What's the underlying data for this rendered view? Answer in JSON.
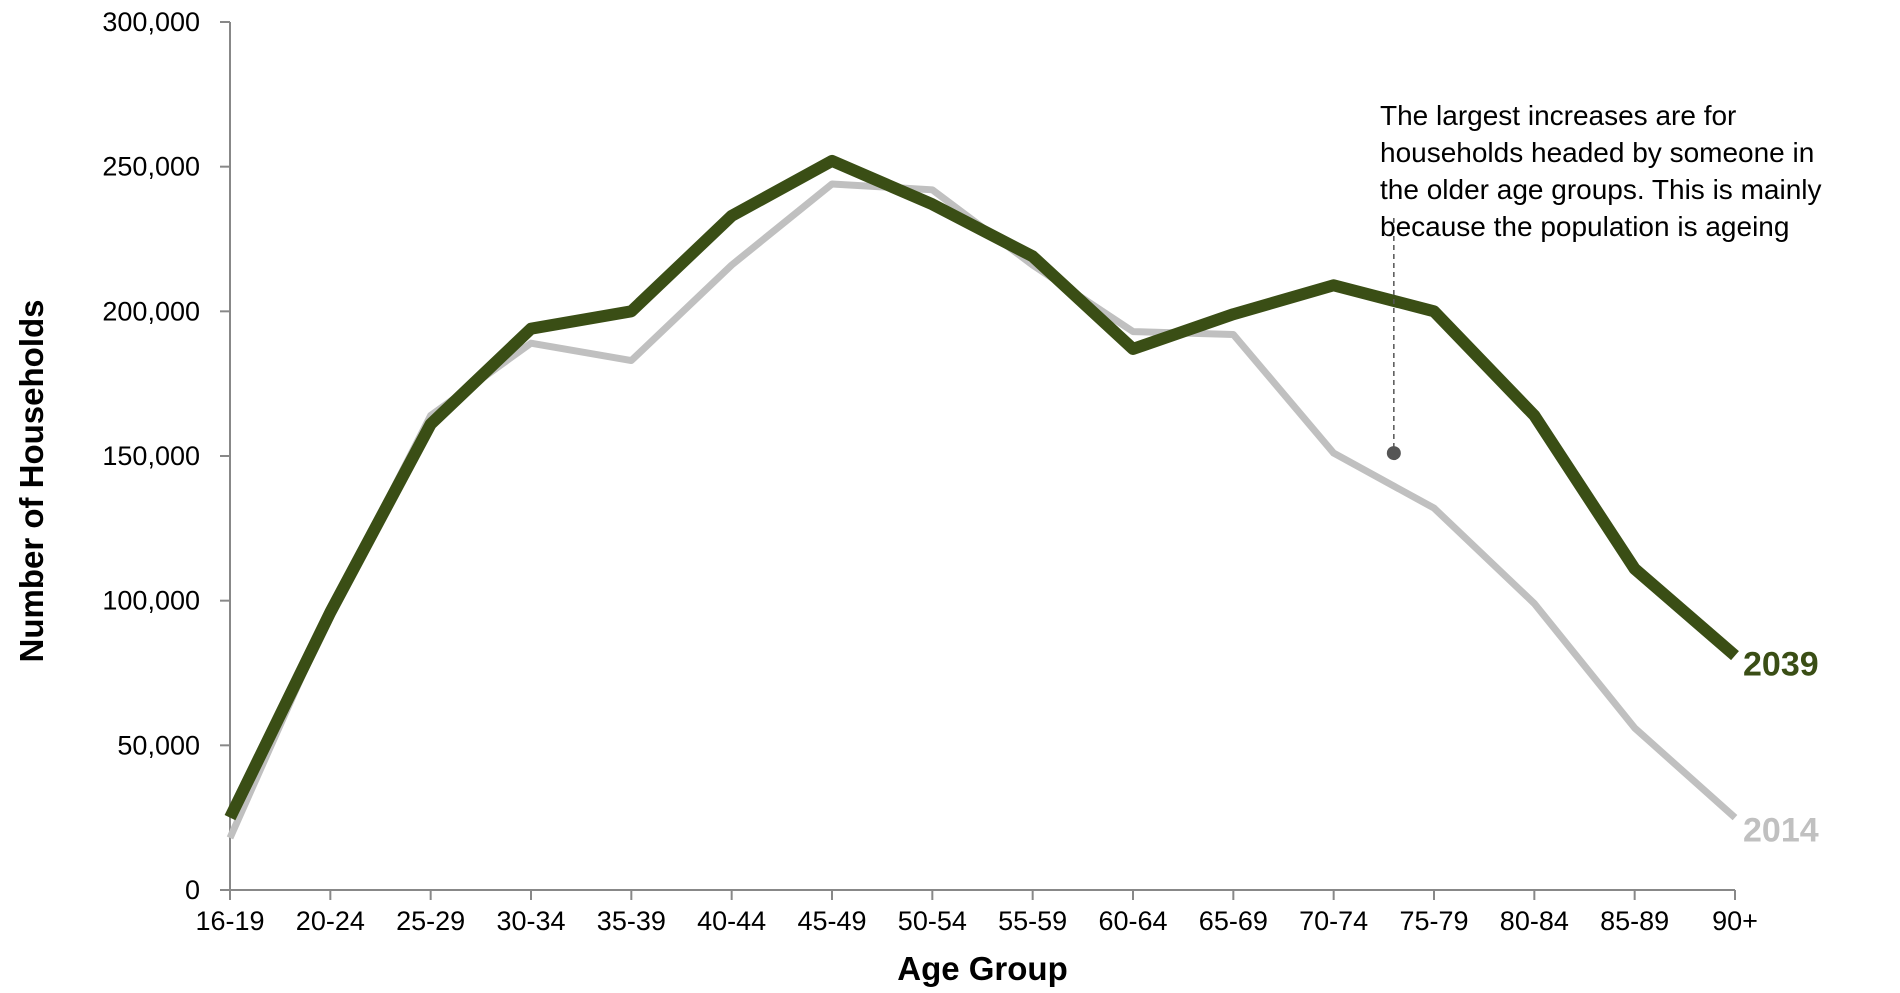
{
  "chart_data": {
    "type": "line",
    "xlabel": "Age Group",
    "ylabel": "Number of Households",
    "ylim": [
      0,
      300000
    ],
    "yticks": [
      0,
      50000,
      100000,
      150000,
      200000,
      250000,
      300000
    ],
    "ytick_labels": [
      "0",
      "50,000",
      "100,000",
      "150,000",
      "200,000",
      "250,000",
      "300,000"
    ],
    "categories": [
      "16-19",
      "20-24",
      "25-29",
      "30-34",
      "35-39",
      "40-44",
      "45-49",
      "50-54",
      "55-59",
      "60-64",
      "65-69",
      "70-74",
      "75-79",
      "80-84",
      "85-89",
      "90+"
    ],
    "series": [
      {
        "name": "2014",
        "color": "#c0c0c0",
        "values": [
          18000,
          96000,
          164000,
          189000,
          183000,
          216000,
          244000,
          242000,
          216000,
          193000,
          192000,
          151000,
          132000,
          99000,
          56000,
          25000
        ]
      },
      {
        "name": "2039",
        "color": "#3a4e15",
        "values": [
          25000,
          96000,
          161000,
          194000,
          200000,
          233000,
          252000,
          237000,
          219000,
          187000,
          199000,
          209000,
          200000,
          164000,
          111000,
          81000
        ]
      }
    ],
    "annotation": {
      "lines": [
        "The largest increases are for",
        "households headed by someone in",
        "the older age groups. This is mainly",
        "because the population is ageing"
      ],
      "marker_value": 151000,
      "marker_between": [
        "70-74",
        "75-79"
      ]
    },
    "grid": false,
    "legend": "inline-right"
  }
}
